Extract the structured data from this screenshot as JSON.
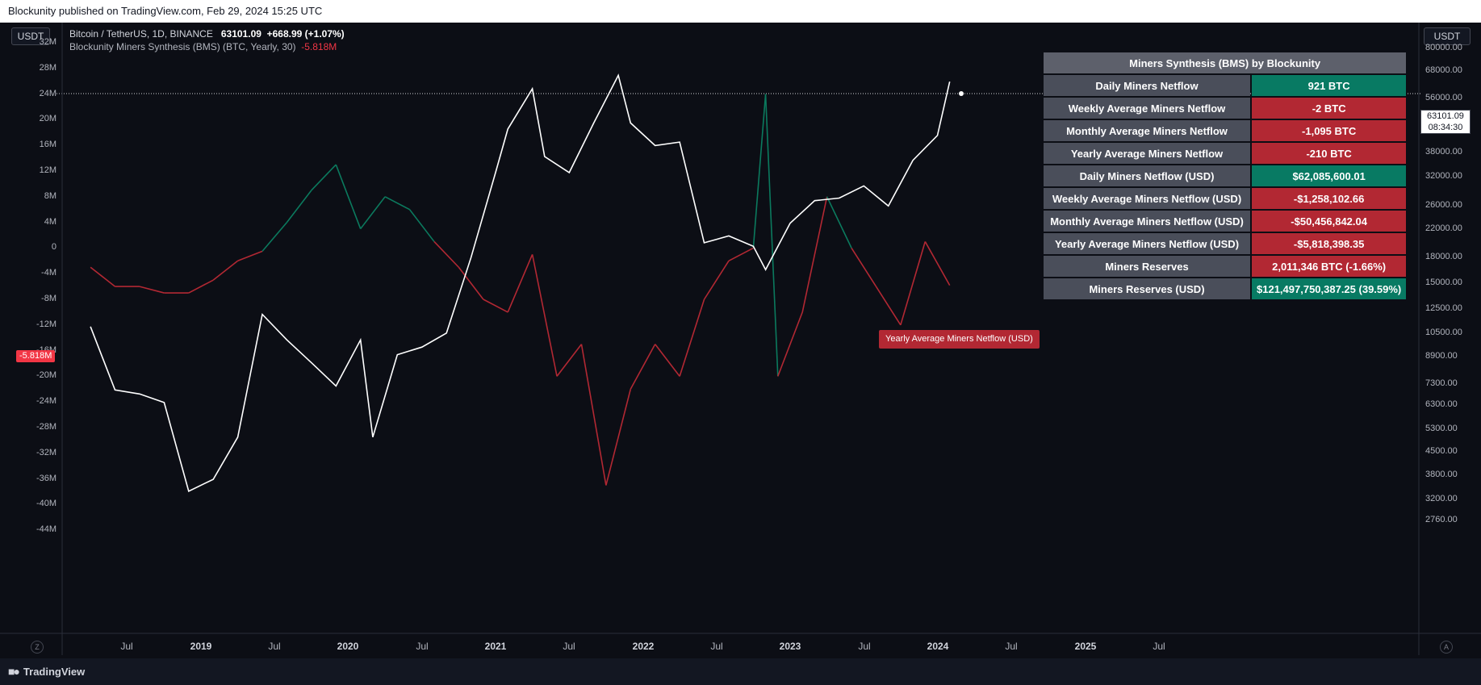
{
  "header": {
    "published": "Blockunity published on TradingView.com, Feb 29, 2024 15:25 UTC"
  },
  "legend": {
    "symbol": "Bitcoin / TetherUS, 1D, BINANCE",
    "price": "63101.09",
    "change": "+668.99 (+1.07%)",
    "indicator": "Blockunity Miners Synthesis (BMS) (BTC, Yearly, 30)",
    "indicator_value": "-5.818M"
  },
  "currency_left": "USDT",
  "currency_right": "USDT",
  "price_tag": {
    "price": "63101.09",
    "countdown": "08:34:30"
  },
  "left_tag": "-5.818M",
  "annotation": "Yearly Average Miners Netflow (USD)",
  "table": {
    "title": "Miners Synthesis (BMS) by Blockunity",
    "rows": [
      {
        "label": "Daily Miners Netflow",
        "value": "921 BTC",
        "color": "green"
      },
      {
        "label": "Weekly Average Miners Netflow",
        "value": "-2 BTC",
        "color": "red"
      },
      {
        "label": "Monthly Average Miners Netflow",
        "value": "-1,095 BTC",
        "color": "red"
      },
      {
        "label": "Yearly Average Miners Netflow",
        "value": "-210 BTC",
        "color": "red"
      },
      {
        "label": "Daily Miners Netflow (USD)",
        "value": "$62,085,600.01",
        "color": "green"
      },
      {
        "label": "Weekly Average Miners Netflow (USD)",
        "value": "-$1,258,102.66",
        "color": "red"
      },
      {
        "label": "Monthly Average Miners Netflow (USD)",
        "value": "-$50,456,842.04",
        "color": "red"
      },
      {
        "label": "Yearly Average Miners Netflow (USD)",
        "value": "-$5,818,398.35",
        "color": "red"
      },
      {
        "label": "Miners Reserves",
        "value": "2,011,346 BTC (-1.66%)",
        "color": "red"
      },
      {
        "label": "Miners Reserves (USD)",
        "value": "$121,497,750,387.25 (39.59%)",
        "color": "green"
      }
    ]
  },
  "footer": {
    "brand": "TradingView",
    "left_button": "Z",
    "right_button": "A"
  },
  "chart_data": {
    "type": "line",
    "x_ticks": [
      "Jul",
      "2019",
      "Jul",
      "2020",
      "Jul",
      "2021",
      "Jul",
      "2022",
      "Jul",
      "2023",
      "Jul",
      "2024",
      "Jul",
      "2025",
      "Jul"
    ],
    "y_left_ticks": [
      "32M",
      "28M",
      "24M",
      "20M",
      "16M",
      "12M",
      "8M",
      "4M",
      "0",
      "-4M",
      "-8M",
      "-12M",
      "-16M",
      "-20M",
      "-24M",
      "-28M",
      "-32M",
      "-36M",
      "-40M",
      "-44M"
    ],
    "y_right_ticks": [
      "80000.00",
      "68000.00",
      "56000.00",
      "46000.00",
      "38000.00",
      "32000.00",
      "26000.00",
      "22000.00",
      "18000.00",
      "15000.00",
      "12500.00",
      "10500.00",
      "8900.00",
      "7300.00",
      "6300.00",
      "5300.00",
      "4500.00",
      "3800.00",
      "3200.00",
      "2760.00"
    ],
    "right_scale": "log",
    "colors": {
      "price": "#ffffff",
      "positive": "#0b7a5e",
      "negative": "#b22833"
    },
    "series": [
      {
        "name": "Bitcoin / TetherUS",
        "axis": "right",
        "x": [
          "2018-04",
          "2018-06",
          "2018-08",
          "2018-10",
          "2018-12",
          "2019-02",
          "2019-04",
          "2019-06",
          "2019-08",
          "2019-10",
          "2019-12",
          "2020-02",
          "2020-03",
          "2020-05",
          "2020-07",
          "2020-09",
          "2020-11",
          "2021-01",
          "2021-02",
          "2021-04",
          "2021-05",
          "2021-07",
          "2021-09",
          "2021-11",
          "2021-12",
          "2022-02",
          "2022-04",
          "2022-06",
          "2022-08",
          "2022-10",
          "2022-11",
          "2023-01",
          "2023-03",
          "2023-05",
          "2023-07",
          "2023-09",
          "2023-11",
          "2024-01",
          "2024-02"
        ],
        "values": [
          11000,
          7000,
          6800,
          6400,
          3400,
          3700,
          5000,
          12000,
          10000,
          8500,
          7200,
          10000,
          5000,
          9000,
          9500,
          10500,
          18000,
          33000,
          45000,
          60000,
          37000,
          33000,
          47000,
          66000,
          47000,
          40000,
          41000,
          20000,
          21000,
          19500,
          16500,
          23000,
          27000,
          27500,
          30000,
          26000,
          36000,
          43000,
          63101.09
        ]
      },
      {
        "name": "Blockunity Miners Synthesis (BMS)",
        "axis": "left",
        "unit": "M USD",
        "x": [
          "2018-04",
          "2018-06",
          "2018-08",
          "2018-10",
          "2018-12",
          "2019-02",
          "2019-04",
          "2019-06",
          "2019-08",
          "2019-10",
          "2019-12",
          "2020-02",
          "2020-04",
          "2020-06",
          "2020-08",
          "2020-10",
          "2020-12",
          "2021-02",
          "2021-04",
          "2021-06",
          "2021-08",
          "2021-10",
          "2021-12",
          "2022-02",
          "2022-04",
          "2022-06",
          "2022-08",
          "2022-10",
          "2022-11",
          "2022-12",
          "2023-02",
          "2023-04",
          "2023-06",
          "2023-08",
          "2023-10",
          "2023-12",
          "2024-02"
        ],
        "values": [
          -3,
          -6,
          -6,
          -7,
          -7,
          -5,
          -2,
          -0.5,
          4,
          9,
          13,
          3,
          8,
          6,
          1,
          -3,
          -8,
          -10,
          -1,
          -20,
          -15,
          -37,
          -22,
          -15,
          -20,
          -8,
          -2,
          0,
          24,
          -20,
          -10,
          8,
          0,
          -6,
          -12,
          1,
          -5.818
        ]
      }
    ]
  }
}
